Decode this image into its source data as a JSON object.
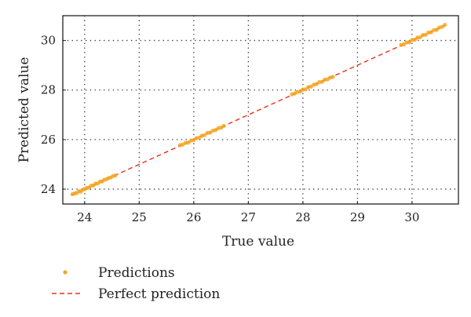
{
  "colors": {
    "points": "#f5a623",
    "line": "#e8321e",
    "grid": "#333333",
    "axis": "#222222"
  },
  "chart_data": {
    "type": "scatter",
    "title": "",
    "xlabel": "True value",
    "ylabel": "Predicted value",
    "xlim": [
      23.6,
      30.85
    ],
    "ylim": [
      23.4,
      31.0
    ],
    "xticks": [
      24,
      25,
      26,
      27,
      28,
      29,
      30
    ],
    "yticks": [
      24,
      26,
      28,
      30
    ],
    "grid": true,
    "legend": {
      "placement": "bottom-left"
    },
    "series": [
      {
        "name": "Predictions",
        "style": "points",
        "x": [
          23.78,
          23.82,
          23.86,
          23.9,
          23.93,
          23.97,
          24.0,
          24.04,
          24.08,
          24.12,
          24.16,
          24.2,
          24.24,
          24.28,
          24.32,
          24.36,
          24.4,
          24.44,
          24.48,
          24.52,
          24.56,
          25.75,
          25.8,
          25.85,
          25.9,
          25.95,
          26.0,
          26.05,
          26.1,
          26.15,
          26.2,
          26.25,
          26.3,
          26.35,
          26.4,
          26.45,
          26.5,
          26.55,
          27.8,
          27.85,
          27.9,
          27.95,
          28.0,
          28.05,
          28.1,
          28.15,
          28.2,
          28.25,
          28.3,
          28.35,
          28.4,
          28.45,
          28.5,
          28.55,
          29.8,
          29.85,
          29.9,
          29.95,
          30.0,
          30.05,
          30.1,
          30.15,
          30.2,
          30.25,
          30.3,
          30.35,
          30.4,
          30.45,
          30.5,
          30.55,
          30.6
        ],
        "y": [
          23.8,
          23.83,
          23.85,
          23.92,
          23.9,
          23.98,
          24.0,
          24.05,
          24.06,
          24.14,
          24.15,
          24.22,
          24.23,
          24.3,
          24.31,
          24.38,
          24.4,
          24.45,
          24.47,
          24.53,
          24.55,
          25.78,
          25.8,
          25.87,
          25.88,
          25.96,
          25.98,
          26.06,
          26.08,
          26.16,
          26.18,
          26.27,
          26.28,
          26.36,
          26.38,
          26.46,
          26.48,
          26.55,
          27.83,
          27.86,
          27.92,
          27.94,
          28.02,
          28.03,
          28.12,
          28.14,
          28.22,
          28.24,
          28.32,
          28.33,
          28.42,
          28.43,
          28.5,
          28.53,
          29.82,
          29.84,
          29.92,
          29.93,
          30.02,
          30.03,
          30.12,
          30.13,
          30.22,
          30.23,
          30.32,
          30.33,
          30.42,
          30.43,
          30.52,
          30.55,
          30.63
        ]
      },
      {
        "name": "Perfect prediction",
        "style": "dashed-line",
        "x": [
          23.75,
          30.6
        ],
        "y": [
          23.75,
          30.6
        ]
      }
    ]
  }
}
